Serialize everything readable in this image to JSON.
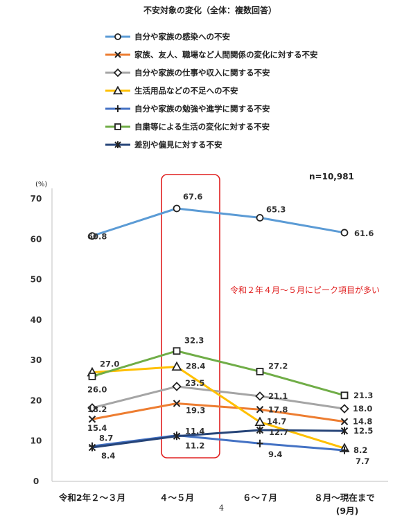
{
  "chart_data": {
    "type": "line",
    "title": "不安対象の変化（全体：複数回答）",
    "sample_size": "n=10,981",
    "ylabel": "(%)",
    "ylim": [
      0,
      70
    ],
    "yticks": [
      "0",
      "10",
      "20",
      "30",
      "40",
      "50",
      "60",
      "70"
    ],
    "categories": [
      "令和2年２～３月",
      "４～５月",
      "６～７月",
      "８月～現在まで"
    ],
    "category_sublabels": [
      "",
      "",
      "",
      "(9月)"
    ],
    "grid": false,
    "legend_position": "top",
    "series": [
      {
        "name": "自分や家族の感染への不安",
        "color": "#5b9bd5",
        "marker": "circle",
        "values": [
          60.8,
          67.6,
          65.3,
          61.6
        ],
        "labels": [
          "60.8",
          "67.6",
          "65.3",
          "61.6"
        ]
      },
      {
        "name": "家族、友人、職場など人間関係の変化に対する不安",
        "color": "#ed7d31",
        "marker": "x",
        "values": [
          15.4,
          19.3,
          17.8,
          14.8
        ],
        "labels": [
          "15.4",
          "19.3",
          "17.8",
          "14.8"
        ]
      },
      {
        "name": "自分や家族の仕事や収入に関する不安",
        "color": "#a5a5a5",
        "marker": "diamond",
        "values": [
          18.2,
          23.5,
          21.1,
          18.0
        ],
        "labels": [
          "18.2",
          "23.5",
          "21.1",
          "18.0"
        ]
      },
      {
        "name": "生活用品などの不足への不安",
        "color": "#ffc000",
        "marker": "triangle",
        "values": [
          27.0,
          28.4,
          14.7,
          8.2
        ],
        "labels": [
          "27.0",
          "28.4",
          "14.7",
          "8.2"
        ]
      },
      {
        "name": "自分や家族の勉強や進学に関する不安",
        "color": "#4472c4",
        "marker": "plus",
        "values": [
          8.7,
          11.4,
          9.4,
          7.7
        ],
        "labels": [
          "8.7",
          "11.4",
          "9.4",
          "7.7"
        ]
      },
      {
        "name": "自粛等による生活の変化に対する不安",
        "color": "#70ad47",
        "marker": "square",
        "values": [
          26.0,
          32.3,
          27.2,
          21.3
        ],
        "labels": [
          "26.0",
          "32.3",
          "27.2",
          "21.3"
        ]
      },
      {
        "name": "差別や偏見に対する不安",
        "color": "#264478",
        "marker": "asterisk",
        "values": [
          8.4,
          11.2,
          12.7,
          12.5
        ],
        "labels": [
          "8.4",
          "11.2",
          "12.7",
          "12.5"
        ]
      }
    ],
    "annotation": "令和２年４月～５月にピーク項目が多い",
    "highlight_category": "４～５月"
  },
  "page_number": "4"
}
